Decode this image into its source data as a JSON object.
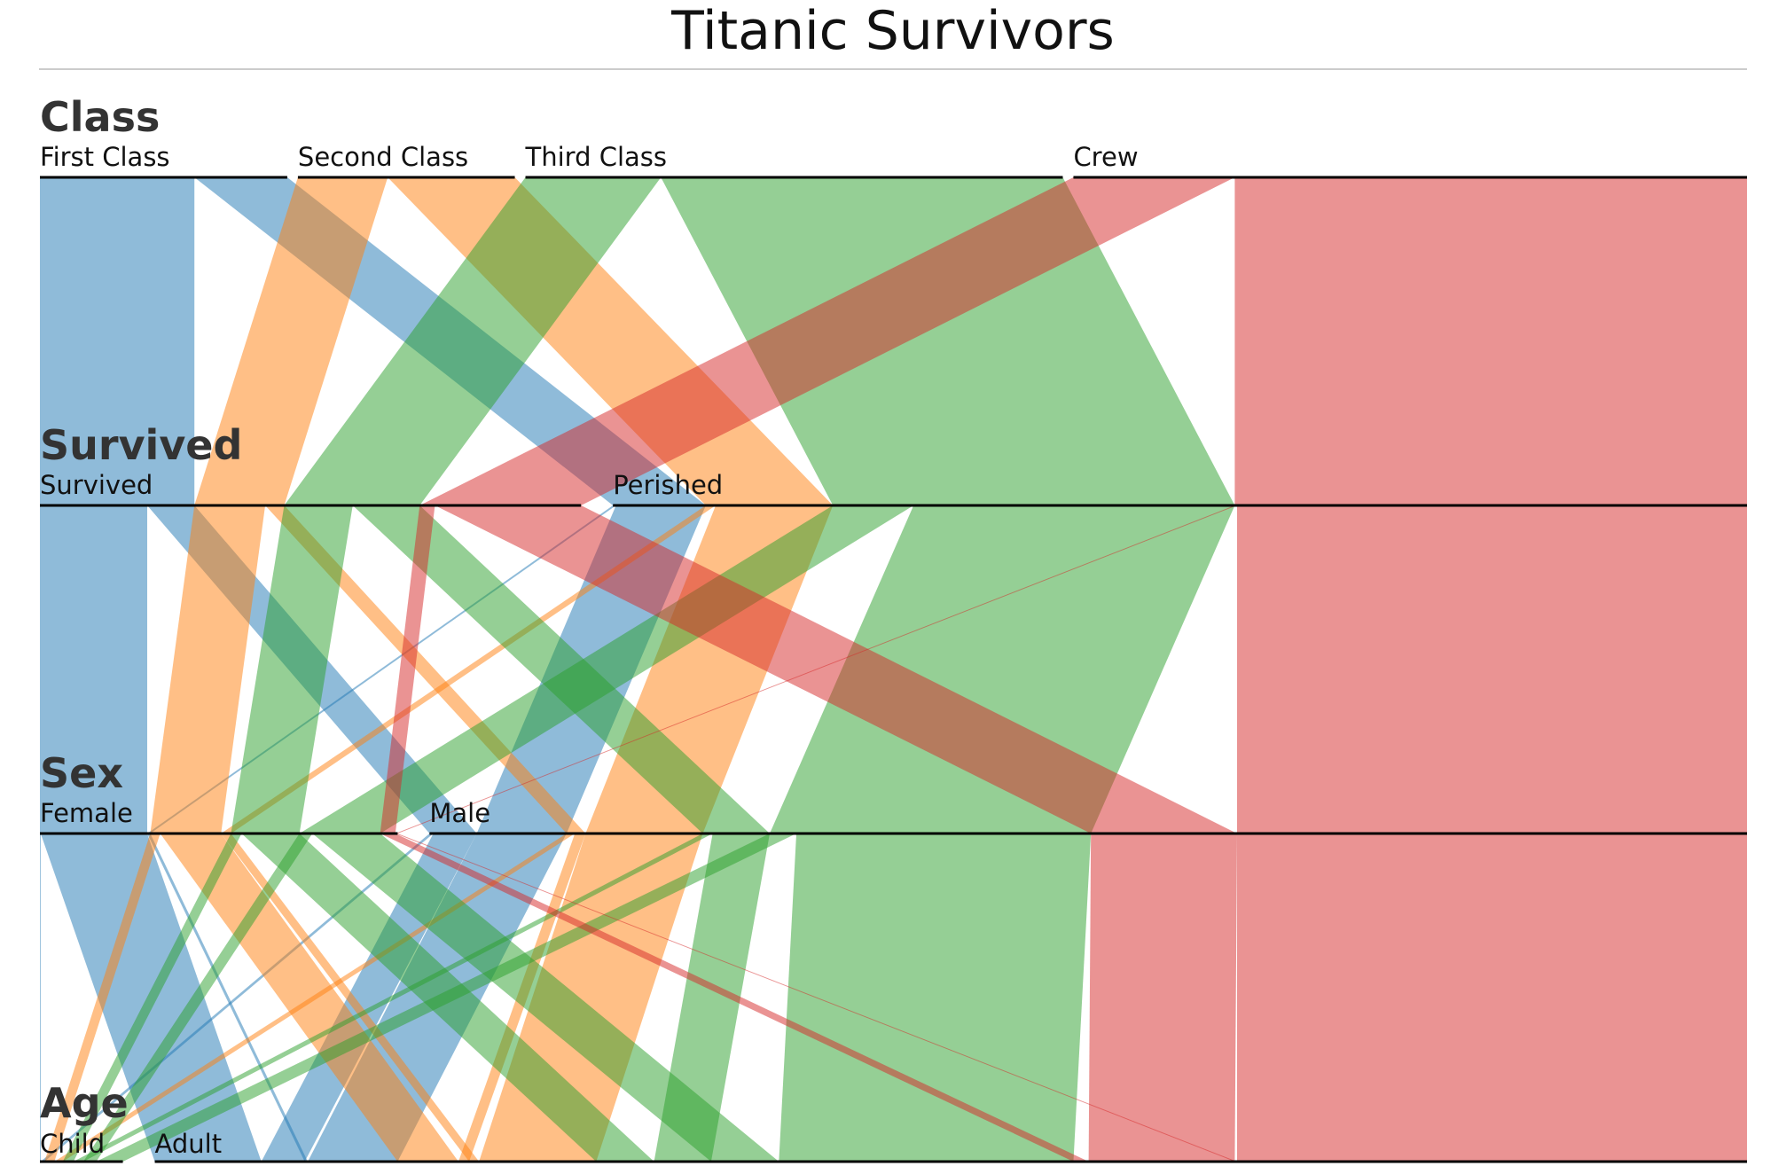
{
  "title": "Titanic Survivors",
  "chart_data": {
    "type": "parallel-sets",
    "title": "Titanic Survivors",
    "dimensions": [
      {
        "name": "Class",
        "categories": [
          "First Class",
          "Second Class",
          "Third Class",
          "Crew"
        ]
      },
      {
        "name": "Survived",
        "categories": [
          "Survived",
          "Perished"
        ]
      },
      {
        "name": "Sex",
        "categories": [
          "Female",
          "Male"
        ]
      },
      {
        "name": "Age",
        "categories": [
          "Child",
          "Adult"
        ]
      }
    ],
    "color_by": "Class",
    "colors": {
      "First Class": "#1f77b4",
      "Second Class": "#ff7f0e",
      "Third Class": "#2ca02c",
      "Crew": "#d62728"
    },
    "records": [
      {
        "class": "First Class",
        "survived": "Survived",
        "sex": "Female",
        "age": "Child",
        "count": 1
      },
      {
        "class": "First Class",
        "survived": "Survived",
        "sex": "Female",
        "age": "Adult",
        "count": 140
      },
      {
        "class": "First Class",
        "survived": "Survived",
        "sex": "Male",
        "age": "Child",
        "count": 5
      },
      {
        "class": "First Class",
        "survived": "Survived",
        "sex": "Male",
        "age": "Adult",
        "count": 57
      },
      {
        "class": "First Class",
        "survived": "Perished",
        "sex": "Female",
        "age": "Adult",
        "count": 4
      },
      {
        "class": "First Class",
        "survived": "Perished",
        "sex": "Male",
        "age": "Adult",
        "count": 118
      },
      {
        "class": "Second Class",
        "survived": "Survived",
        "sex": "Female",
        "age": "Child",
        "count": 13
      },
      {
        "class": "Second Class",
        "survived": "Survived",
        "sex": "Female",
        "age": "Adult",
        "count": 80
      },
      {
        "class": "Second Class",
        "survived": "Survived",
        "sex": "Male",
        "age": "Child",
        "count": 11
      },
      {
        "class": "Second Class",
        "survived": "Survived",
        "sex": "Male",
        "age": "Adult",
        "count": 14
      },
      {
        "class": "Second Class",
        "survived": "Perished",
        "sex": "Female",
        "age": "Adult",
        "count": 13
      },
      {
        "class": "Second Class",
        "survived": "Perished",
        "sex": "Male",
        "age": "Adult",
        "count": 154
      },
      {
        "class": "Third Class",
        "survived": "Survived",
        "sex": "Female",
        "age": "Child",
        "count": 14
      },
      {
        "class": "Third Class",
        "survived": "Survived",
        "sex": "Female",
        "age": "Adult",
        "count": 76
      },
      {
        "class": "Third Class",
        "survived": "Survived",
        "sex": "Male",
        "age": "Child",
        "count": 13
      },
      {
        "class": "Third Class",
        "survived": "Survived",
        "sex": "Male",
        "age": "Adult",
        "count": 75
      },
      {
        "class": "Third Class",
        "survived": "Perished",
        "sex": "Female",
        "age": "Child",
        "count": 17
      },
      {
        "class": "Third Class",
        "survived": "Perished",
        "sex": "Female",
        "age": "Adult",
        "count": 89
      },
      {
        "class": "Third Class",
        "survived": "Perished",
        "sex": "Male",
        "age": "Child",
        "count": 35
      },
      {
        "class": "Third Class",
        "survived": "Perished",
        "sex": "Male",
        "age": "Adult",
        "count": 387
      },
      {
        "class": "Crew",
        "survived": "Survived",
        "sex": "Female",
        "age": "Adult",
        "count": 20
      },
      {
        "class": "Crew",
        "survived": "Survived",
        "sex": "Male",
        "age": "Adult",
        "count": 192
      },
      {
        "class": "Crew",
        "survived": "Perished",
        "sex": "Female",
        "age": "Adult",
        "count": 3
      },
      {
        "class": "Crew",
        "survived": "Perished",
        "sex": "Male",
        "age": "Adult",
        "count": 670
      }
    ]
  }
}
